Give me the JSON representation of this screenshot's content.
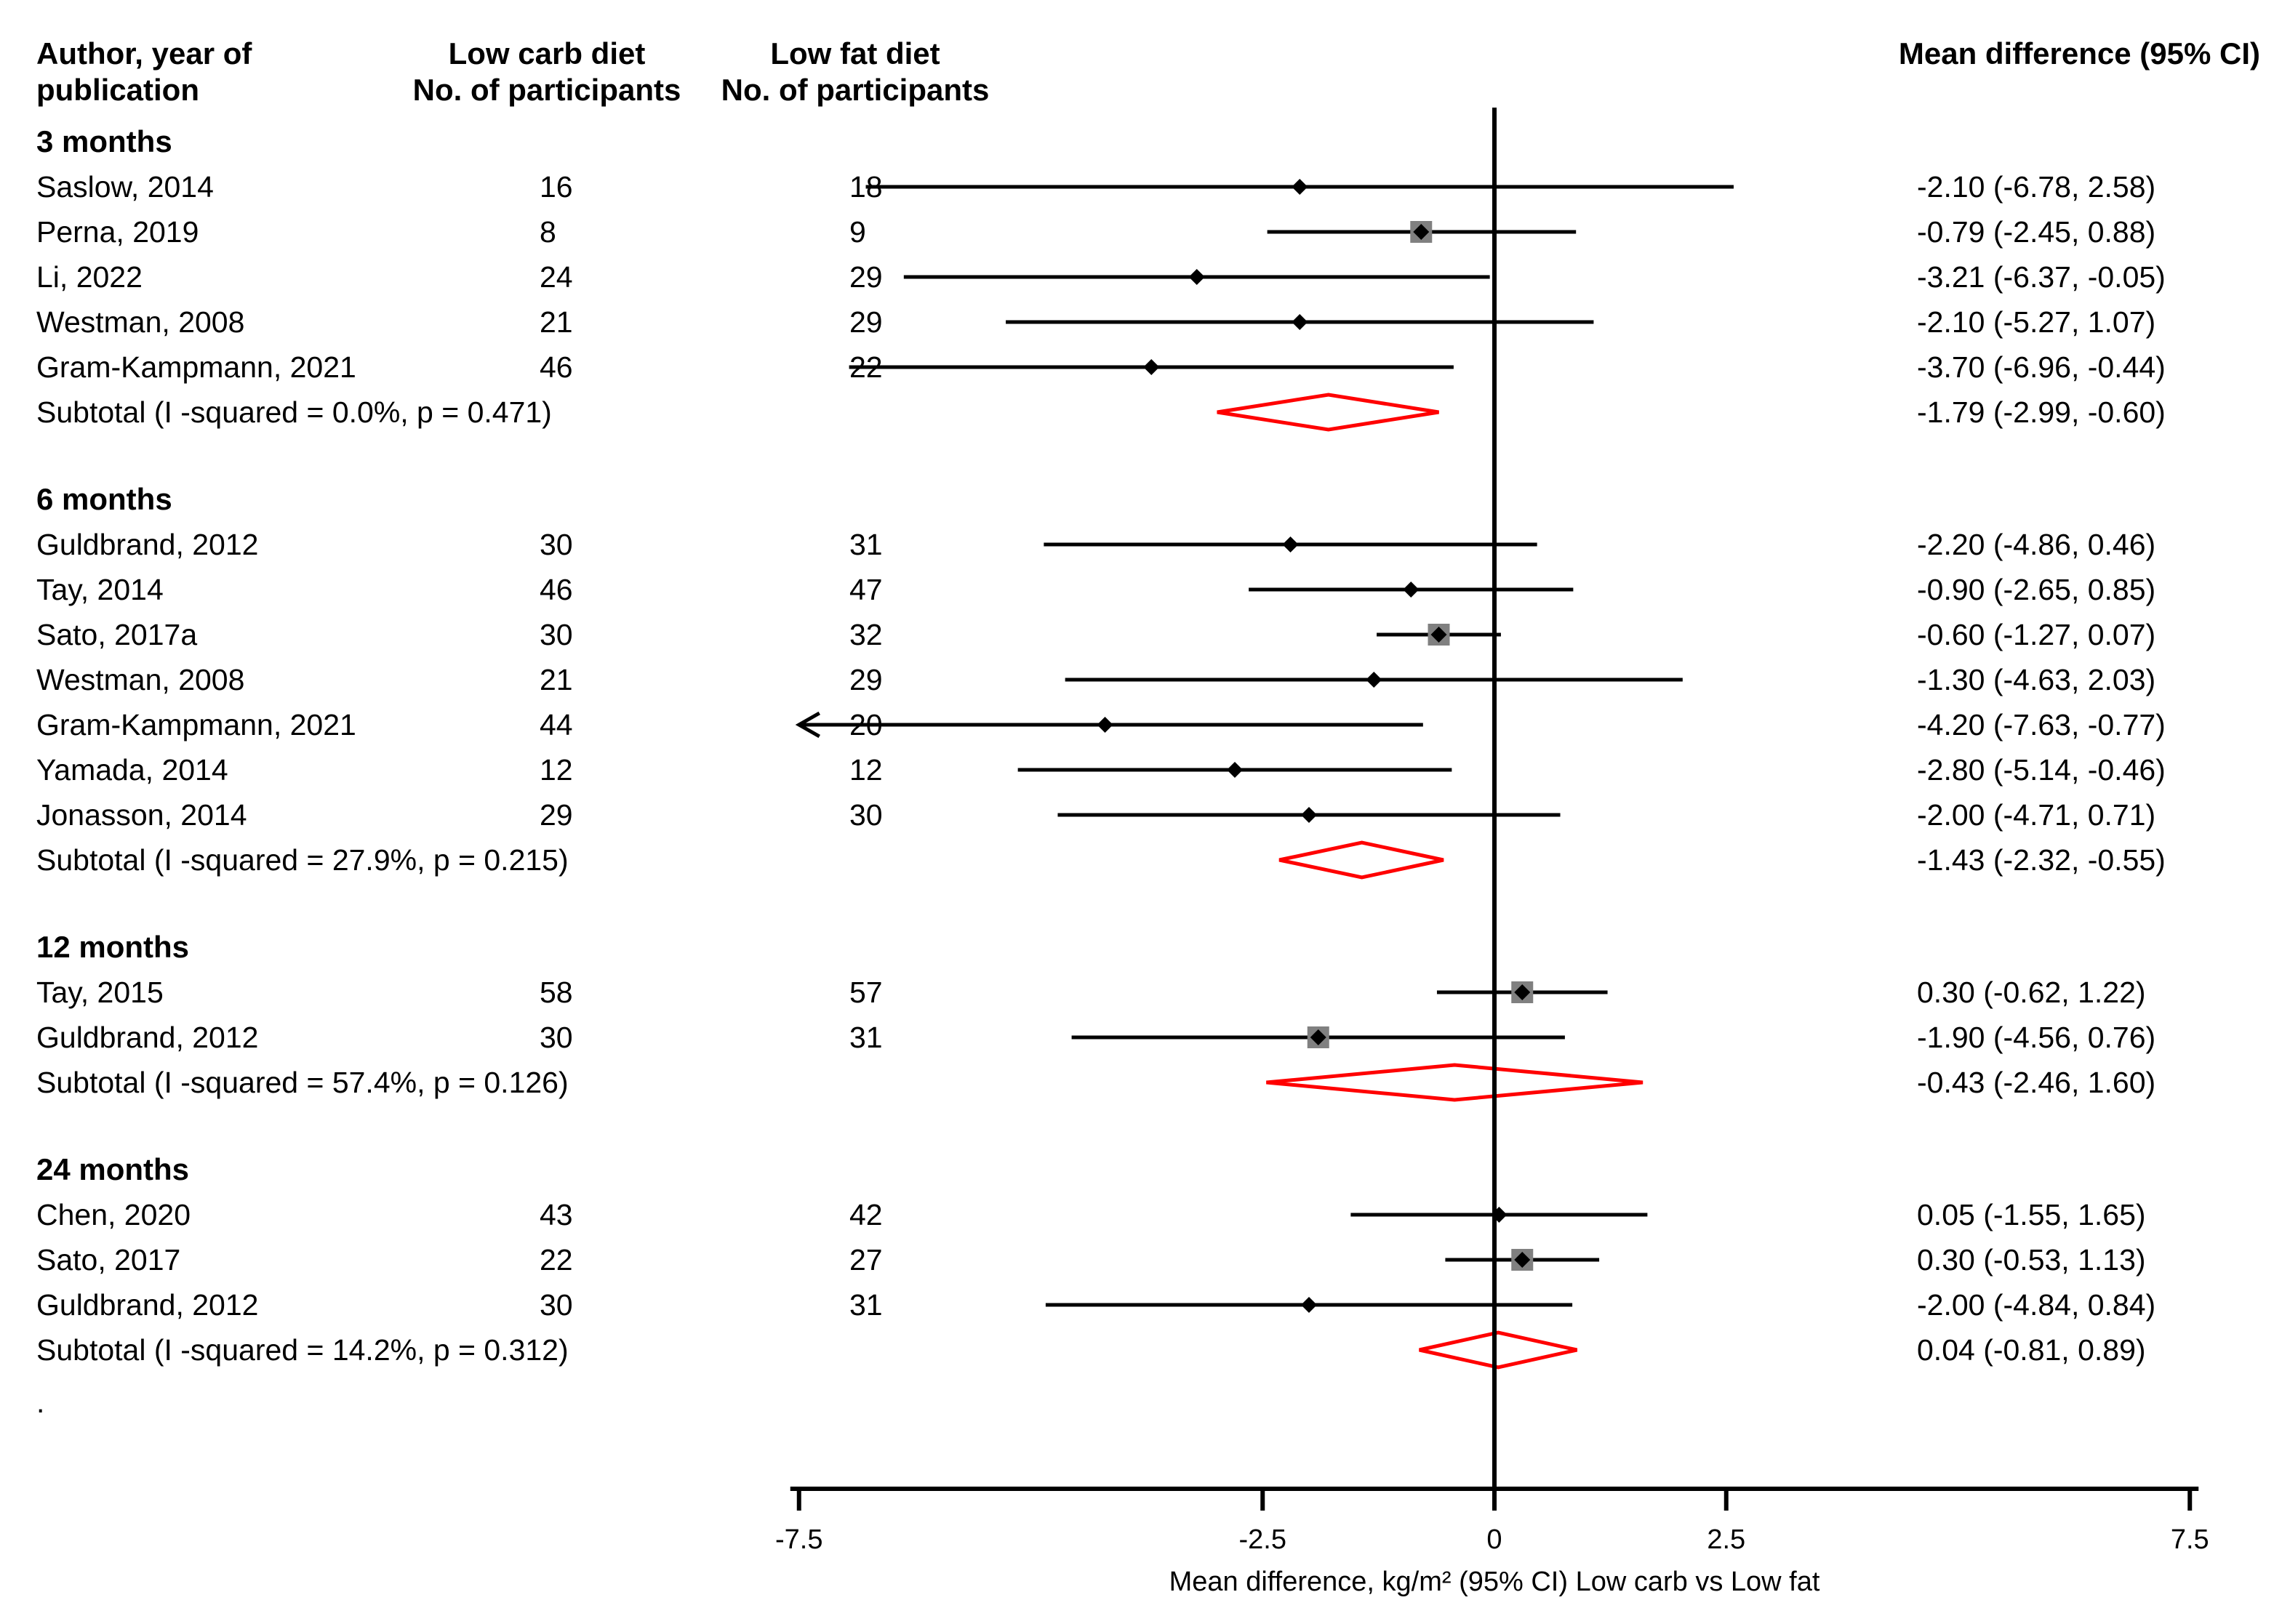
{
  "headers": {
    "author_line1": "Author, year of",
    "author_line2": "publication",
    "lowcarb_line1": "Low carb diet",
    "lowcarb_line2": "No. of participants",
    "lowfat_line1": "Low fat diet",
    "lowfat_line2": "No. of participants",
    "md": "Mean difference (95% CI)"
  },
  "chart_data": {
    "type": "forest",
    "xlabel": "Mean difference, kg/m² (95% CI) Low carb vs Low fat",
    "xlim": [
      -7.5,
      7.5
    ],
    "xticks": [
      -7.5,
      -2.5,
      0,
      2.5,
      7.5
    ],
    "xtick_labels": [
      "-7.5",
      "-2.5",
      "0",
      "2.5",
      "7.5"
    ],
    "footnote": ".",
    "groups": [
      {
        "name": "3 months",
        "studies": [
          {
            "label": "Saslow, 2014",
            "n_lc": "16",
            "n_lf": "18",
            "est": -2.1,
            "lo": -6.78,
            "hi": 2.58,
            "ci_text": "-2.10 (-6.78, 2.58)",
            "weight_box": false
          },
          {
            "label": "Perna, 2019",
            "n_lc": "8",
            "n_lf": "9",
            "est": -0.79,
            "lo": -2.45,
            "hi": 0.88,
            "ci_text": "-0.79 (-2.45, 0.88)",
            "weight_box": true
          },
          {
            "label": "Li, 2022",
            "n_lc": "24",
            "n_lf": "29",
            "est": -3.21,
            "lo": -6.37,
            "hi": -0.05,
            "ci_text": "-3.21 (-6.37, -0.05)",
            "weight_box": false
          },
          {
            "label": "Westman, 2008",
            "n_lc": "21",
            "n_lf": "29",
            "est": -2.1,
            "lo": -5.27,
            "hi": 1.07,
            "ci_text": "-2.10 (-5.27, 1.07)",
            "weight_box": false
          },
          {
            "label": "Gram-Kampmann, 2021",
            "n_lc": "46",
            "n_lf": "22",
            "est": -3.7,
            "lo": -6.96,
            "hi": -0.44,
            "ci_text": "-3.70 (-6.96, -0.44)",
            "weight_box": false
          }
        ],
        "subtotal": {
          "label": "Subtotal (I -squared = 0.0%, p = 0.471)",
          "est": -1.79,
          "lo": -2.99,
          "hi": -0.6,
          "ci_text": "-1.79 (-2.99, -0.60)"
        }
      },
      {
        "name": "6 months",
        "studies": [
          {
            "label": "Guldbrand, 2012",
            "n_lc": "30",
            "n_lf": "31",
            "est": -2.2,
            "lo": -4.86,
            "hi": 0.46,
            "ci_text": "-2.20 (-4.86, 0.46)",
            "weight_box": false
          },
          {
            "label": "Tay, 2014",
            "n_lc": "46",
            "n_lf": "47",
            "est": -0.9,
            "lo": -2.65,
            "hi": 0.85,
            "ci_text": "-0.90 (-2.65, 0.85)",
            "weight_box": false
          },
          {
            "label": "Sato, 2017a",
            "n_lc": "30",
            "n_lf": "32",
            "est": -0.6,
            "lo": -1.27,
            "hi": 0.07,
            "ci_text": "-0.60 (-1.27, 0.07)",
            "weight_box": true
          },
          {
            "label": "Westman, 2008",
            "n_lc": "21",
            "n_lf": "29",
            "est": -1.3,
            "lo": -4.63,
            "hi": 2.03,
            "ci_text": "-1.30 (-4.63, 2.03)",
            "weight_box": false
          },
          {
            "label": "Gram-Kampmann, 2021",
            "n_lc": "44",
            "n_lf": "20",
            "est": -4.2,
            "lo": -7.63,
            "hi": -0.77,
            "ci_text": "-4.20 (-7.63, -0.77)",
            "weight_box": false
          },
          {
            "label": "Yamada, 2014",
            "n_lc": "12",
            "n_lf": "12",
            "est": -2.8,
            "lo": -5.14,
            "hi": -0.46,
            "ci_text": "-2.80 (-5.14, -0.46)",
            "weight_box": false
          },
          {
            "label": "Jonasson, 2014",
            "n_lc": "29",
            "n_lf": "30",
            "est": -2.0,
            "lo": -4.71,
            "hi": 0.71,
            "ci_text": "-2.00 (-4.71, 0.71)",
            "weight_box": false
          }
        ],
        "subtotal": {
          "label": "Subtotal (I -squared = 27.9%, p = 0.215)",
          "est": -1.43,
          "lo": -2.32,
          "hi": -0.55,
          "ci_text": "-1.43 (-2.32, -0.55)"
        }
      },
      {
        "name": "12 months",
        "studies": [
          {
            "label": "Tay, 2015",
            "n_lc": "58",
            "n_lf": "57",
            "est": 0.3,
            "lo": -0.62,
            "hi": 1.22,
            "ci_text": "0.30 (-0.62, 1.22)",
            "weight_box": true
          },
          {
            "label": "Guldbrand, 2012",
            "n_lc": "30",
            "n_lf": "31",
            "est": -1.9,
            "lo": -4.56,
            "hi": 0.76,
            "ci_text": "-1.90 (-4.56, 0.76)",
            "weight_box": true
          }
        ],
        "subtotal": {
          "label": "Subtotal (I -squared = 57.4%, p = 0.126)",
          "est": -0.43,
          "lo": -2.46,
          "hi": 1.6,
          "ci_text": "-0.43 (-2.46, 1.60)"
        }
      },
      {
        "name": "24 months",
        "studies": [
          {
            "label": "Chen, 2020",
            "n_lc": "43",
            "n_lf": "42",
            "est": 0.05,
            "lo": -1.55,
            "hi": 1.65,
            "ci_text": "0.05 (-1.55, 1.65)",
            "weight_box": false
          },
          {
            "label": "Sato, 2017",
            "n_lc": "22",
            "n_lf": "27",
            "est": 0.3,
            "lo": -0.53,
            "hi": 1.13,
            "ci_text": "0.30 (-0.53, 1.13)",
            "weight_box": true
          },
          {
            "label": "Guldbrand, 2012",
            "n_lc": "30",
            "n_lf": "31",
            "est": -2.0,
            "lo": -4.84,
            "hi": 0.84,
            "ci_text": "-2.00 (-4.84, 0.84)",
            "weight_box": false
          }
        ],
        "subtotal": {
          "label": "Subtotal (I -squared = 14.2%, p = 0.312)",
          "est": 0.04,
          "lo": -0.81,
          "hi": 0.89,
          "ci_text": "0.04 (-0.81, 0.89)"
        }
      }
    ]
  },
  "colors": {
    "diamond": "#ff0000",
    "weight_box": "#808080",
    "line": "#000000"
  }
}
